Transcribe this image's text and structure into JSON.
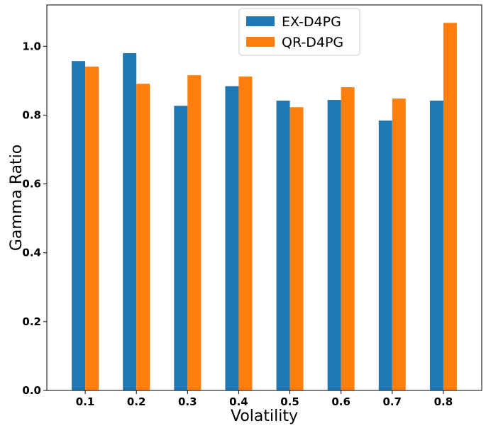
{
  "chart_data": {
    "type": "bar",
    "categories": [
      "0.1",
      "0.2",
      "0.3",
      "0.4",
      "0.5",
      "0.6",
      "0.7",
      "0.8"
    ],
    "series": [
      {
        "name": "EX-D4PG",
        "values": [
          0.957,
          0.98,
          0.827,
          0.884,
          0.842,
          0.844,
          0.784,
          0.842
        ],
        "color": "#1f77b4"
      },
      {
        "name": "QR-D4PG",
        "values": [
          0.941,
          0.891,
          0.916,
          0.912,
          0.823,
          0.881,
          0.848,
          1.068
        ],
        "color": "#ff7f0e"
      }
    ],
    "title": "",
    "xlabel": "Volatility",
    "ylabel": "Gamma Ratio",
    "ylim": [
      0,
      1.12
    ],
    "yticks": [
      "0.0",
      "0.2",
      "0.4",
      "0.6",
      "0.8",
      "1.0"
    ],
    "grid": false,
    "legend_position": "top-center"
  }
}
